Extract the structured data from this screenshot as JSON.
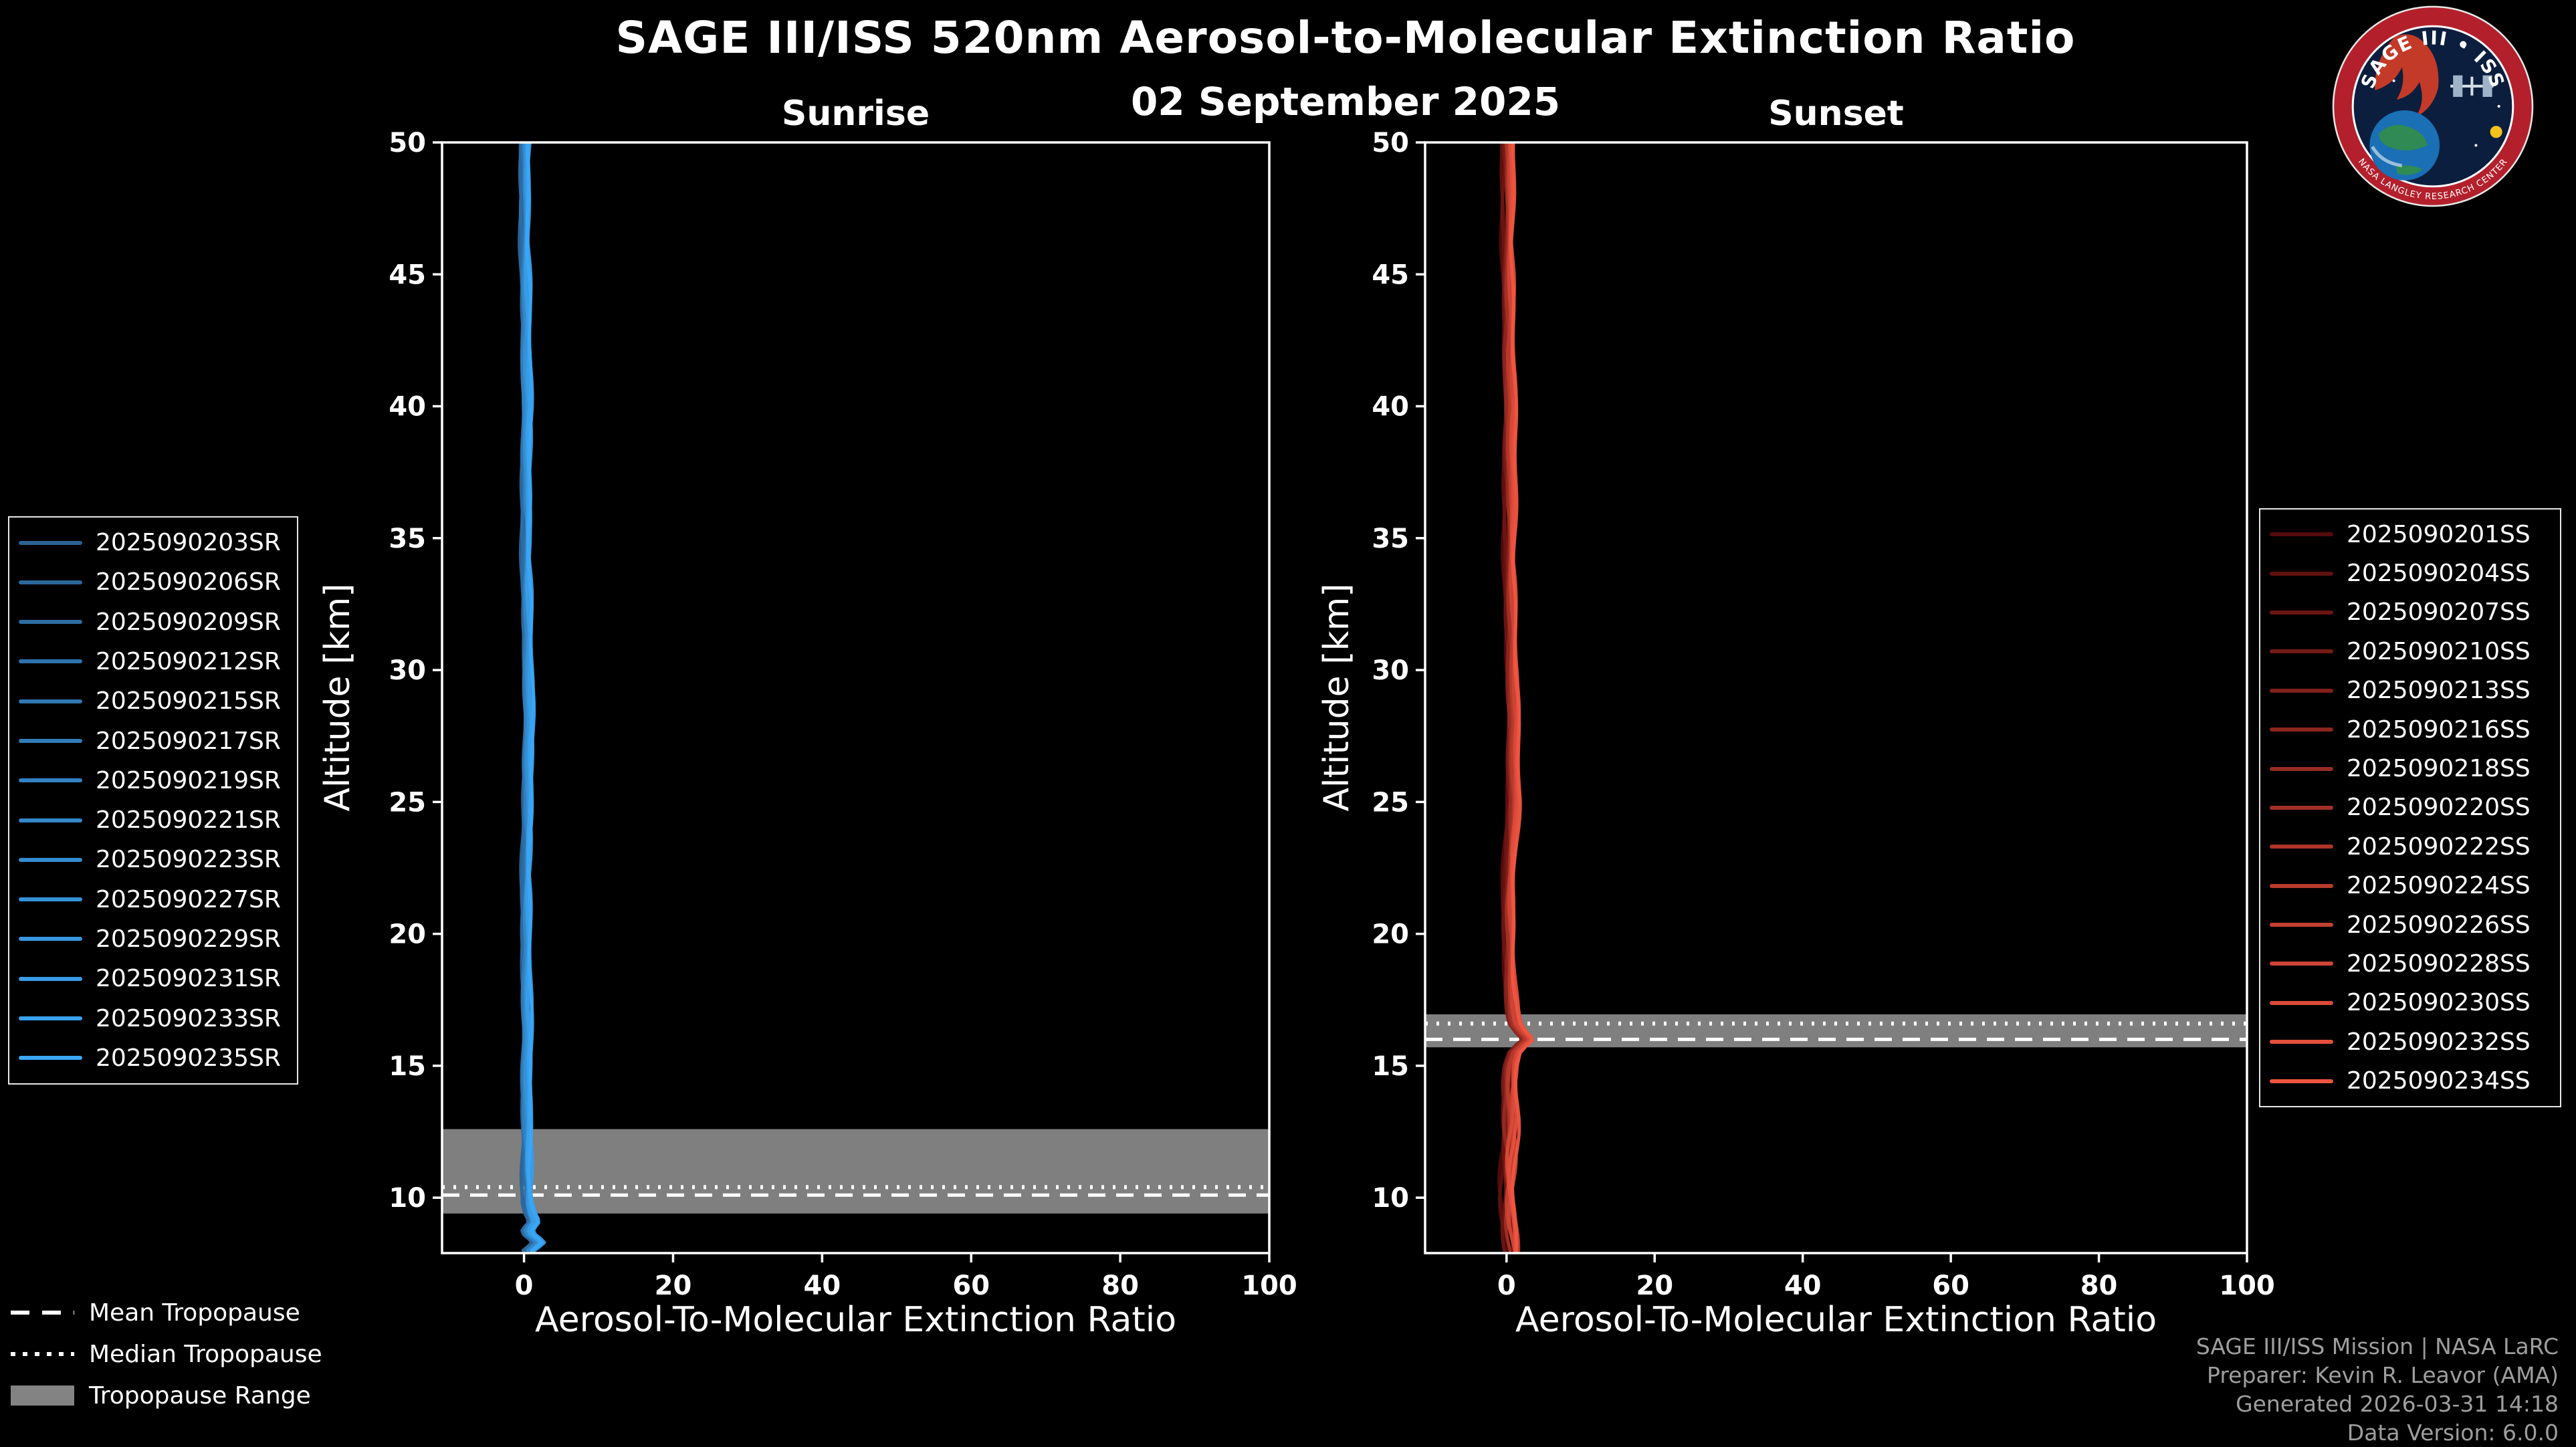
{
  "header": {
    "title": "SAGE III/ISS 520nm Aerosol-to-Molecular Extinction Ratio",
    "subtitle": "02 September 2025"
  },
  "logo": {
    "arc_text": "SAGE III • ISS",
    "ring_text": "NASA LANGLEY RESEARCH CENTER"
  },
  "tropopause_legend": {
    "mean_label": "Mean Tropopause",
    "median_label": "Median Tropopause",
    "range_label": "Tropopause Range"
  },
  "credits": {
    "line1": "SAGE III/ISS Mission | NASA LaRC",
    "line2": "Preparer: Kevin R. Leavor (AMA)",
    "line3": "Generated 2026-03-31 14:18",
    "line4": "Data Version: 6.0.0"
  },
  "colors": {
    "background": "#000000",
    "foreground": "#ffffff",
    "tropopause_band": "#8a8a8a",
    "credits_text": "#9e9e9e"
  },
  "chart_data": [
    {
      "type": "line",
      "panel": "sunrise",
      "title": "Sunrise",
      "xlabel": "Aerosol-To-Molecular Extinction Ratio",
      "ylabel": "Altitude [km]",
      "xlim": [
        -11,
        100
      ],
      "ylim": [
        7.9,
        50
      ],
      "xticks": [
        0,
        20,
        40,
        60,
        80,
        100
      ],
      "yticks": [
        10,
        15,
        20,
        25,
        30,
        35,
        40,
        45,
        50
      ],
      "grid": false,
      "legend_position": "outside-left",
      "color_start": "#2b6394",
      "color_end": "#3aa7f7",
      "bundle_spread": 1.0,
      "wiggle_below_km": 13,
      "series_labels": [
        "2025090203SR",
        "2025090206SR",
        "2025090209SR",
        "2025090212SR",
        "2025090215SR",
        "2025090217SR",
        "2025090219SR",
        "2025090221SR",
        "2025090223SR",
        "2025090227SR",
        "2025090229SR",
        "2025090231SR",
        "2025090233SR",
        "2025090235SR"
      ],
      "profile": {
        "altitude_km": [
          8.0,
          8.2,
          8.35,
          8.5,
          8.7,
          8.9,
          9.1,
          9.4,
          9.8,
          10.3,
          11,
          12,
          13,
          15,
          18,
          22,
          26,
          30,
          34,
          38,
          42,
          46,
          50
        ],
        "ratio": [
          0.8,
          1.7,
          2.2,
          1.2,
          0.5,
          0.9,
          1.5,
          1.0,
          0.7,
          0.6,
          0.5,
          0.4,
          0.3,
          0.3,
          0.3,
          0.4,
          0.5,
          0.5,
          0.4,
          0.3,
          0.25,
          0.2,
          0.2
        ]
      },
      "tropopause": {
        "mean_km": 10.1,
        "median_km": 10.4,
        "range_km": [
          9.4,
          12.6
        ]
      }
    },
    {
      "type": "line",
      "panel": "sunset",
      "title": "Sunset",
      "xlabel": "Aerosol-To-Molecular Extinction Ratio",
      "ylabel": "Altitude [km]",
      "xlim": [
        -11,
        100
      ],
      "ylim": [
        7.9,
        50
      ],
      "xticks": [
        0,
        20,
        40,
        60,
        80,
        100
      ],
      "yticks": [
        10,
        15,
        20,
        25,
        30,
        35,
        40,
        45,
        50
      ],
      "grid": false,
      "legend_position": "outside-right",
      "color_start": "#550b0b",
      "color_end": "#f05540",
      "bundle_spread": 1.4,
      "wiggle_below_km": 19,
      "series_labels": [
        "2025090201SS",
        "2025090204SS",
        "2025090207SS",
        "2025090210SS",
        "2025090213SS",
        "2025090216SS",
        "2025090218SS",
        "2025090220SS",
        "2025090222SS",
        "2025090224SS",
        "2025090226SS",
        "2025090228SS",
        "2025090230SS",
        "2025090232SS",
        "2025090234SS"
      ],
      "profile": {
        "altitude_km": [
          8.0,
          8.5,
          9,
          10,
          11,
          12,
          13,
          14,
          15,
          15.5,
          15.8,
          16.0,
          16.3,
          16.6,
          17,
          17.5,
          18,
          19,
          20,
          21,
          22,
          23.5,
          25,
          27,
          30,
          34,
          38,
          42,
          46,
          50
        ],
        "ratio": [
          0.9,
          0.7,
          0.5,
          0.4,
          0.35,
          0.3,
          0.35,
          0.4,
          0.6,
          1.0,
          1.9,
          2.7,
          1.6,
          0.9,
          0.7,
          0.6,
          0.5,
          0.4,
          0.35,
          0.3,
          0.4,
          0.6,
          0.9,
          0.8,
          0.7,
          0.5,
          0.4,
          0.3,
          0.25,
          0.2
        ]
      },
      "tropopause": {
        "mean_km": 16.0,
        "median_km": 16.6,
        "range_km": [
          15.7,
          16.95
        ]
      }
    }
  ]
}
